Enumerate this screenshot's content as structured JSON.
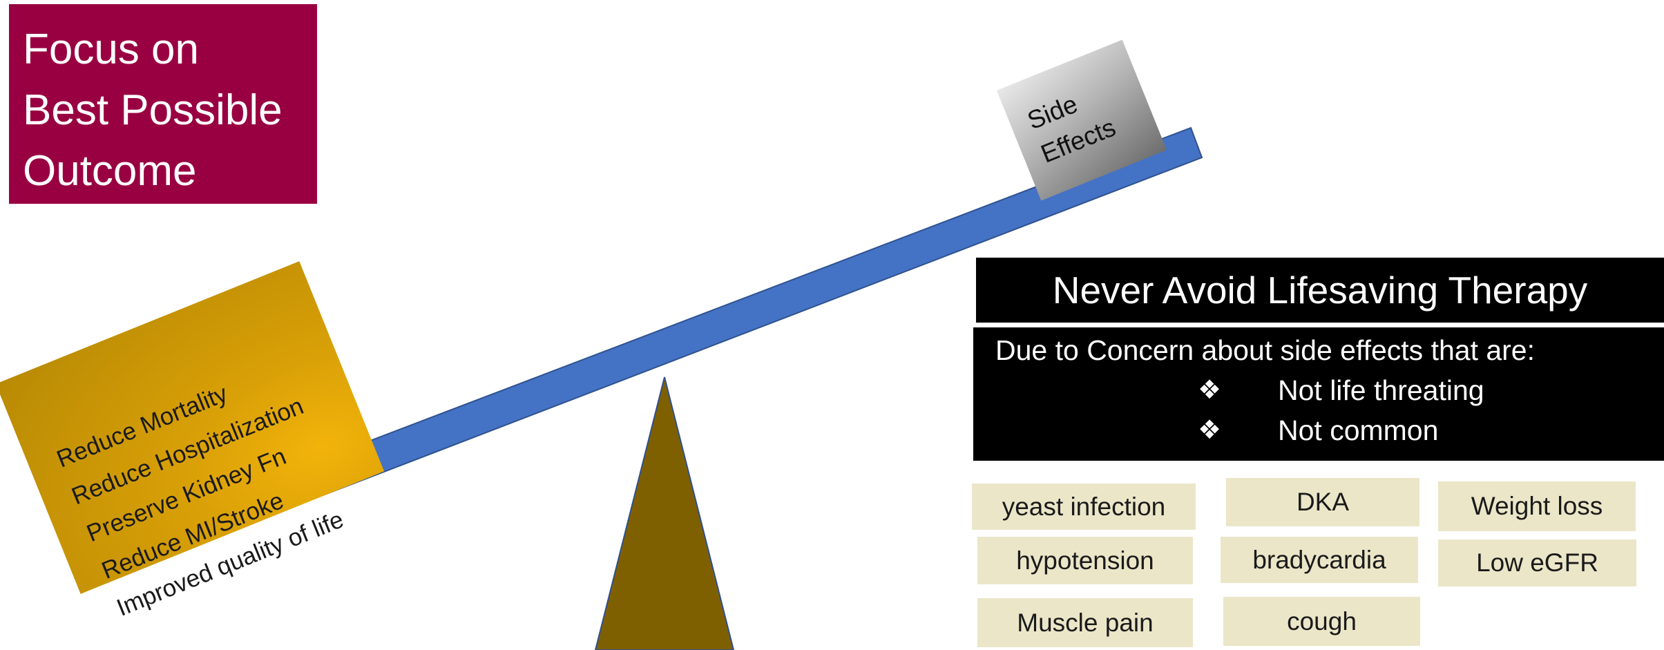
{
  "title": {
    "lines": [
      "Focus on",
      "Best Possible",
      "Outcome"
    ]
  },
  "benefits": {
    "items": [
      "Reduce Mortality",
      "Reduce Hospitalization",
      "Preserve Kidney Fn",
      "Reduce MI/Stroke",
      "Improved quality of life"
    ]
  },
  "side_effects": {
    "lines": [
      "Side",
      "Effects"
    ]
  },
  "panel": {
    "header": "Never Avoid Lifesaving Therapy",
    "concern": "Due to Concern about side effects  that are:",
    "bullets": [
      "Not life threating",
      "Not common"
    ],
    "bullet_glyph": "❖"
  },
  "tags": [
    "yeast infection",
    "DKA",
    "Weight loss",
    "hypotension",
    "bradycardia",
    "Low eGFR",
    "Muscle pain",
    "cough"
  ],
  "colors": {
    "title_bg": "#990042",
    "beam": "#4472c4",
    "fulcrum": "#7f6000",
    "benefits_gold": "#d9a007",
    "tag_bg": "#ebe6c8"
  }
}
